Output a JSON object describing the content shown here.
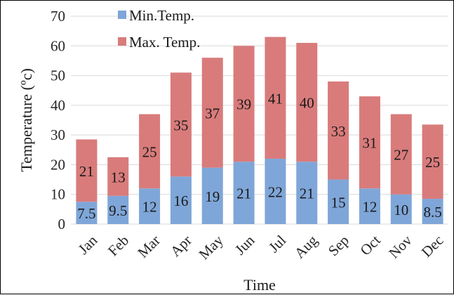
{
  "chart_data": {
    "type": "bar",
    "stacked": true,
    "categories": [
      "Jan",
      "Feb",
      "Mar",
      "Apr",
      "May",
      "Jun",
      "Jul",
      "Aug",
      "Sep",
      "Oct",
      "Nov",
      "Dec"
    ],
    "series": [
      {
        "name": "Min.Temp.",
        "values": [
          7.5,
          9.5,
          12,
          16,
          19,
          21,
          22,
          21,
          15,
          12,
          10,
          8.5
        ],
        "color": "#7fa6d8"
      },
      {
        "name": "Max. Temp.",
        "values": [
          21,
          13,
          25,
          35,
          37,
          39,
          41,
          40,
          33,
          31,
          27,
          25
        ],
        "color": "#d97b7b"
      }
    ],
    "xlabel": "Time",
    "ylabel": "Temperature  (ºc)",
    "ylim": [
      0,
      70
    ],
    "yticks": [
      0,
      10,
      20,
      30,
      40,
      50,
      60,
      70
    ],
    "grid": true,
    "legend": "top-left"
  }
}
